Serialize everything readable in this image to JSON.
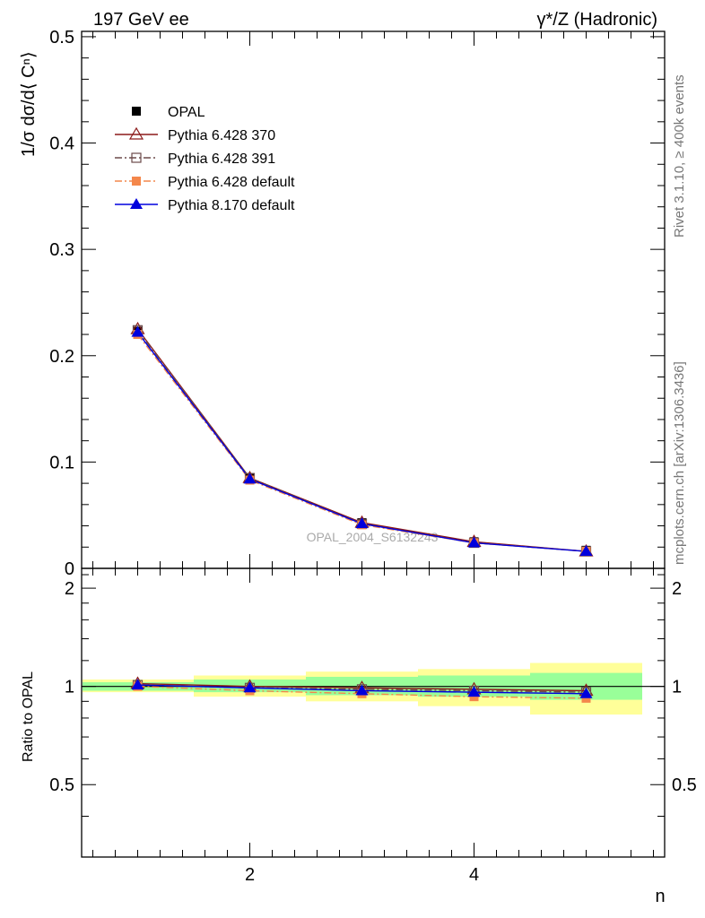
{
  "header": {
    "left": "197 GeV ee",
    "right": "γ*/Z (Hadronic)"
  },
  "side": {
    "rivet": "Rivet 3.1.10, ≥ 400k events",
    "mcplots": "mcplots.cern.ch [arXiv:1306.3436]"
  },
  "watermark": "OPAL_2004_S6132243",
  "chart_data": [
    {
      "type": "line",
      "ylabel": "1/σ dσ/d⟨ Cⁿ⟩",
      "xlabel": "n",
      "xlim": [
        0.5,
        5.7
      ],
      "ylim": [
        0,
        0.505
      ],
      "yticks": [
        0,
        0.1,
        0.2,
        0.3,
        0.4,
        0.5
      ],
      "ytick_labels": [
        "0",
        "0.1",
        "0.2",
        "0.3",
        "0.4",
        "0.5"
      ],
      "x": [
        1,
        2,
        3,
        4,
        5
      ],
      "legend": "top-left",
      "series": [
        {
          "name": "OPAL",
          "color": "#000000",
          "marker": "square-filled",
          "values": [
            0.223,
            0.085,
            0.043,
            0.025,
            0.017
          ]
        },
        {
          "name": "Pythia 6.428 370",
          "color": "#8b1a1a",
          "marker": "triangle-open",
          "line": "solid",
          "values": [
            0.225,
            0.085,
            0.043,
            0.025,
            0.016
          ]
        },
        {
          "name": "Pythia 6.428 391",
          "color": "#6b4a4a",
          "marker": "square-open",
          "line": "dashdot",
          "values": [
            0.224,
            0.085,
            0.042,
            0.024,
            0.016
          ]
        },
        {
          "name": "Pythia 6.428 default",
          "color": "#f4874b",
          "marker": "square-filled",
          "line": "dashdot",
          "values": [
            0.22,
            0.083,
            0.041,
            0.024,
            0.016
          ]
        },
        {
          "name": "Pythia 8.170 default",
          "color": "#0000dd",
          "marker": "triangle-filled",
          "line": "solid",
          "values": [
            0.222,
            0.084,
            0.042,
            0.024,
            0.016
          ]
        }
      ]
    },
    {
      "type": "line",
      "ylabel": "Ratio to OPAL",
      "xlabel": "n",
      "xlim": [
        0.5,
        5.7
      ],
      "ylim": [
        0.3,
        2.3
      ],
      "yticks": [
        0.5,
        1,
        2
      ],
      "ytick_labels": [
        "0.5",
        "1",
        "2"
      ],
      "xticks": [
        2,
        4
      ],
      "xtick_labels": [
        "2",
        "4"
      ],
      "bands": {
        "x_edges": [
          0.5,
          1.5,
          2.5,
          3.5,
          4.5,
          5.5
        ],
        "yellow": [
          [
            0.96,
            1.05
          ],
          [
            0.93,
            1.08
          ],
          [
            0.9,
            1.11
          ],
          [
            0.87,
            1.13
          ],
          [
            0.82,
            1.18
          ]
        ],
        "green": [
          [
            0.97,
            1.03
          ],
          [
            0.96,
            1.05
          ],
          [
            0.94,
            1.07
          ],
          [
            0.93,
            1.08
          ],
          [
            0.91,
            1.1
          ]
        ]
      },
      "series": [
        {
          "name": "Pythia 6.428 370",
          "values": [
            1.02,
            1.0,
            0.99,
            0.98,
            0.97
          ]
        },
        {
          "name": "Pythia 6.428 391",
          "values": [
            1.01,
            0.99,
            0.98,
            0.97,
            0.96
          ]
        },
        {
          "name": "Pythia 6.428 default",
          "values": [
            1.0,
            0.97,
            0.95,
            0.93,
            0.92
          ]
        },
        {
          "name": "Pythia 8.170 default",
          "values": [
            1.01,
            0.99,
            0.97,
            0.96,
            0.95
          ]
        }
      ]
    }
  ]
}
